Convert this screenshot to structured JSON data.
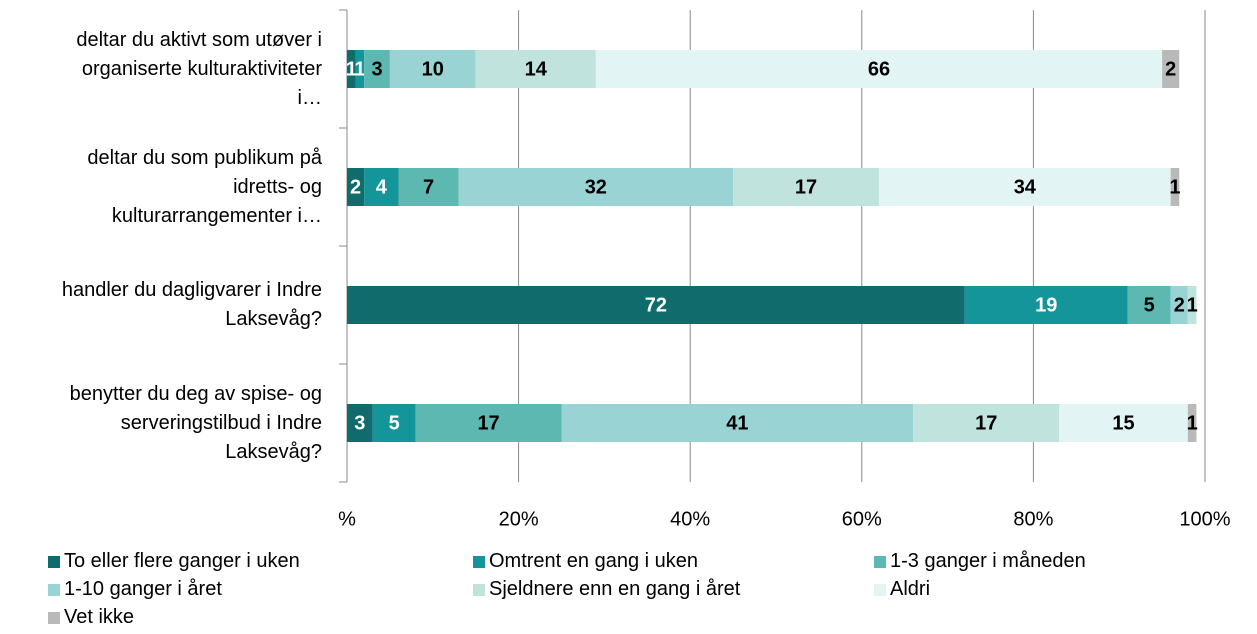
{
  "chart_data": {
    "type": "stacked_barh",
    "categories": [
      "deltar du aktivt som utøver i organiserte kulturaktiviteter i…",
      "deltar du som publikum på idretts- og kulturarrangementer i…",
      "handler du dagligvarer i Indre Laksevåg?",
      "benytter du deg av spise- og serveringstilbud i Indre Laksevåg?"
    ],
    "series": [
      {
        "name": "To eller flere ganger i uken",
        "color": "#0f6b6c",
        "values": [
          1,
          2,
          72,
          3
        ]
      },
      {
        "name": "Omtrent en gang i uken",
        "color": "#14959a",
        "values": [
          1,
          4,
          19,
          5
        ]
      },
      {
        "name": "1-3 ganger i måneden",
        "color": "#5db8b1",
        "values": [
          3,
          7,
          5,
          17
        ]
      },
      {
        "name": "1-10 ganger i året",
        "color": "#9ad3d4",
        "values": [
          10,
          32,
          2,
          41
        ]
      },
      {
        "name": "Sjeldnere enn en gang i året",
        "color": "#c0e3dd",
        "values": [
          14,
          17,
          1,
          17
        ]
      },
      {
        "name": "Aldri",
        "color": "#e3f4f4",
        "values": [
          66,
          34,
          null,
          15
        ]
      },
      {
        "name": "Vet ikke",
        "color": "#b9b9b9",
        "values": [
          2,
          1,
          null,
          1
        ]
      }
    ],
    "xlim": [
      0,
      100
    ],
    "xticks": [
      {
        "value": 0,
        "label": "%"
      },
      {
        "value": 20,
        "label": "20%"
      },
      {
        "value": 40,
        "label": "40%"
      },
      {
        "value": 60,
        "label": "60%"
      },
      {
        "value": 80,
        "label": "80%"
      },
      {
        "value": 100,
        "label": "100%"
      }
    ],
    "grid": true
  }
}
